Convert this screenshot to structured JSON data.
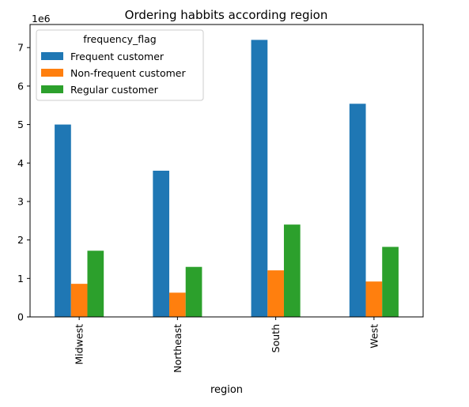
{
  "chart_data": {
    "type": "bar",
    "title": "Ordering habbits according region",
    "xlabel": "region",
    "ylabel": "",
    "y_multiplier_label": "1e6",
    "categories": [
      "Midwest",
      "Northeast",
      "South",
      "West"
    ],
    "yticks": [
      "0",
      "1",
      "2",
      "3",
      "4",
      "5",
      "6",
      "7"
    ],
    "ylim": [
      0,
      7.6
    ],
    "legend": {
      "title": "frequency_flag",
      "placement": "top-left"
    },
    "series": [
      {
        "name": "Frequent customer",
        "color": "#1f77b4",
        "values": [
          5.0,
          3.8,
          7.2,
          5.54
        ]
      },
      {
        "name": "Non-frequent customer",
        "color": "#ff7f0e",
        "values": [
          0.86,
          0.63,
          1.21,
          0.92
        ]
      },
      {
        "name": "Regular customer",
        "color": "#2ca02c",
        "values": [
          1.72,
          1.3,
          2.4,
          1.82
        ]
      }
    ]
  }
}
